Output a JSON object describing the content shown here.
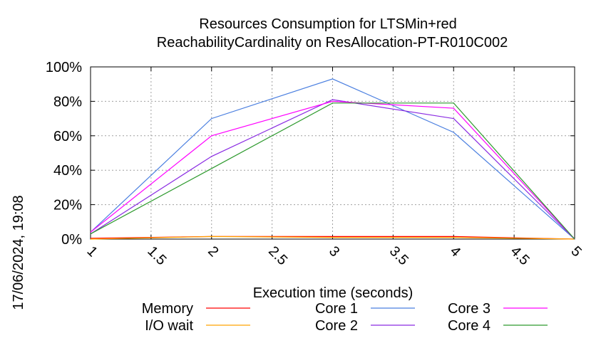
{
  "chart_data": {
    "type": "line",
    "title": [
      "Resources Consumption for LTSMin+red",
      "ReachabilityCardinality on ResAllocation-PT-R010C002"
    ],
    "xlabel": "Execution time (seconds)",
    "ylabel": "",
    "side_label": "17/06/2024, 19:08",
    "xlim": [
      1,
      5
    ],
    "ylim": [
      0,
      100
    ],
    "x_ticks": [
      "1",
      "1.5",
      "2",
      "2.5",
      "3",
      "3.5",
      "4",
      "4.5",
      "5"
    ],
    "y_ticks": [
      "0%",
      "20%",
      "40%",
      "60%",
      "80%",
      "100%"
    ],
    "grid": true,
    "legend_position": "bottom",
    "x": [
      1,
      2,
      3,
      4,
      5
    ],
    "series": [
      {
        "name": "Memory",
        "color": "#ff0000",
        "values": [
          0.5,
          1.5,
          1.5,
          1.5,
          0
        ]
      },
      {
        "name": "I/O wait",
        "color": "#ffa500",
        "values": [
          0,
          1.5,
          1,
          1,
          0
        ]
      },
      {
        "name": "Core 1",
        "color": "#4a7fe0",
        "values": [
          4,
          70,
          93,
          62,
          0
        ]
      },
      {
        "name": "Core 2",
        "color": "#8a2be2",
        "values": [
          3,
          48,
          81,
          70,
          0
        ]
      },
      {
        "name": "Core 3",
        "color": "#ff00ff",
        "values": [
          4,
          60,
          80,
          76,
          0
        ]
      },
      {
        "name": "Core 4",
        "color": "#2e9a2e",
        "values": [
          3,
          41,
          79,
          79,
          0
        ]
      }
    ]
  }
}
